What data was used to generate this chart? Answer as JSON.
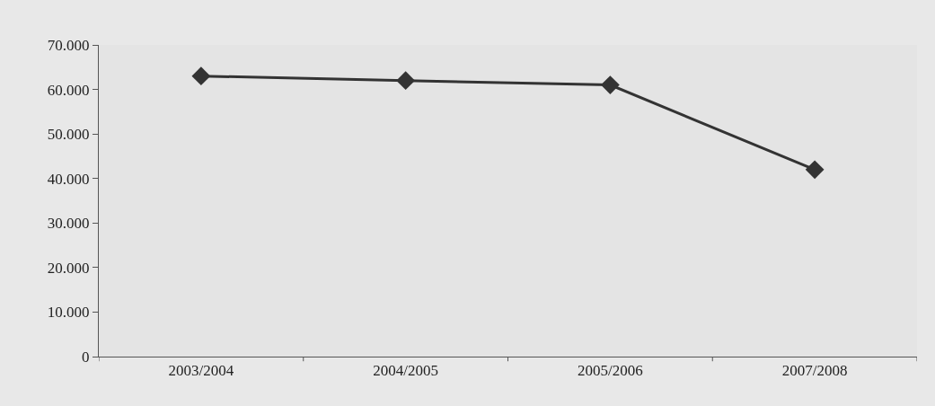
{
  "chart_data": {
    "type": "line",
    "categories": [
      "2003/2004",
      "2004/2005",
      "2005/2006",
      "2007/2008"
    ],
    "series": [
      {
        "color": "#333333",
        "values": [
          63000,
          62000,
          61000,
          42000
        ]
      }
    ],
    "ylim": [
      0,
      70000
    ],
    "yticks": [
      {
        "value": 0,
        "label": "0"
      },
      {
        "value": 10000,
        "label": "10.000"
      },
      {
        "value": 20000,
        "label": "20.000"
      },
      {
        "value": 30000,
        "label": "30.000"
      },
      {
        "value": 40000,
        "label": "40.000"
      },
      {
        "value": 50000,
        "label": "50.000"
      },
      {
        "value": 60000,
        "label": "60.000"
      },
      {
        "value": 70000,
        "label": "70.000"
      }
    ],
    "marker": "diamond",
    "line_style": "solid",
    "grid": false,
    "legend": false
  }
}
